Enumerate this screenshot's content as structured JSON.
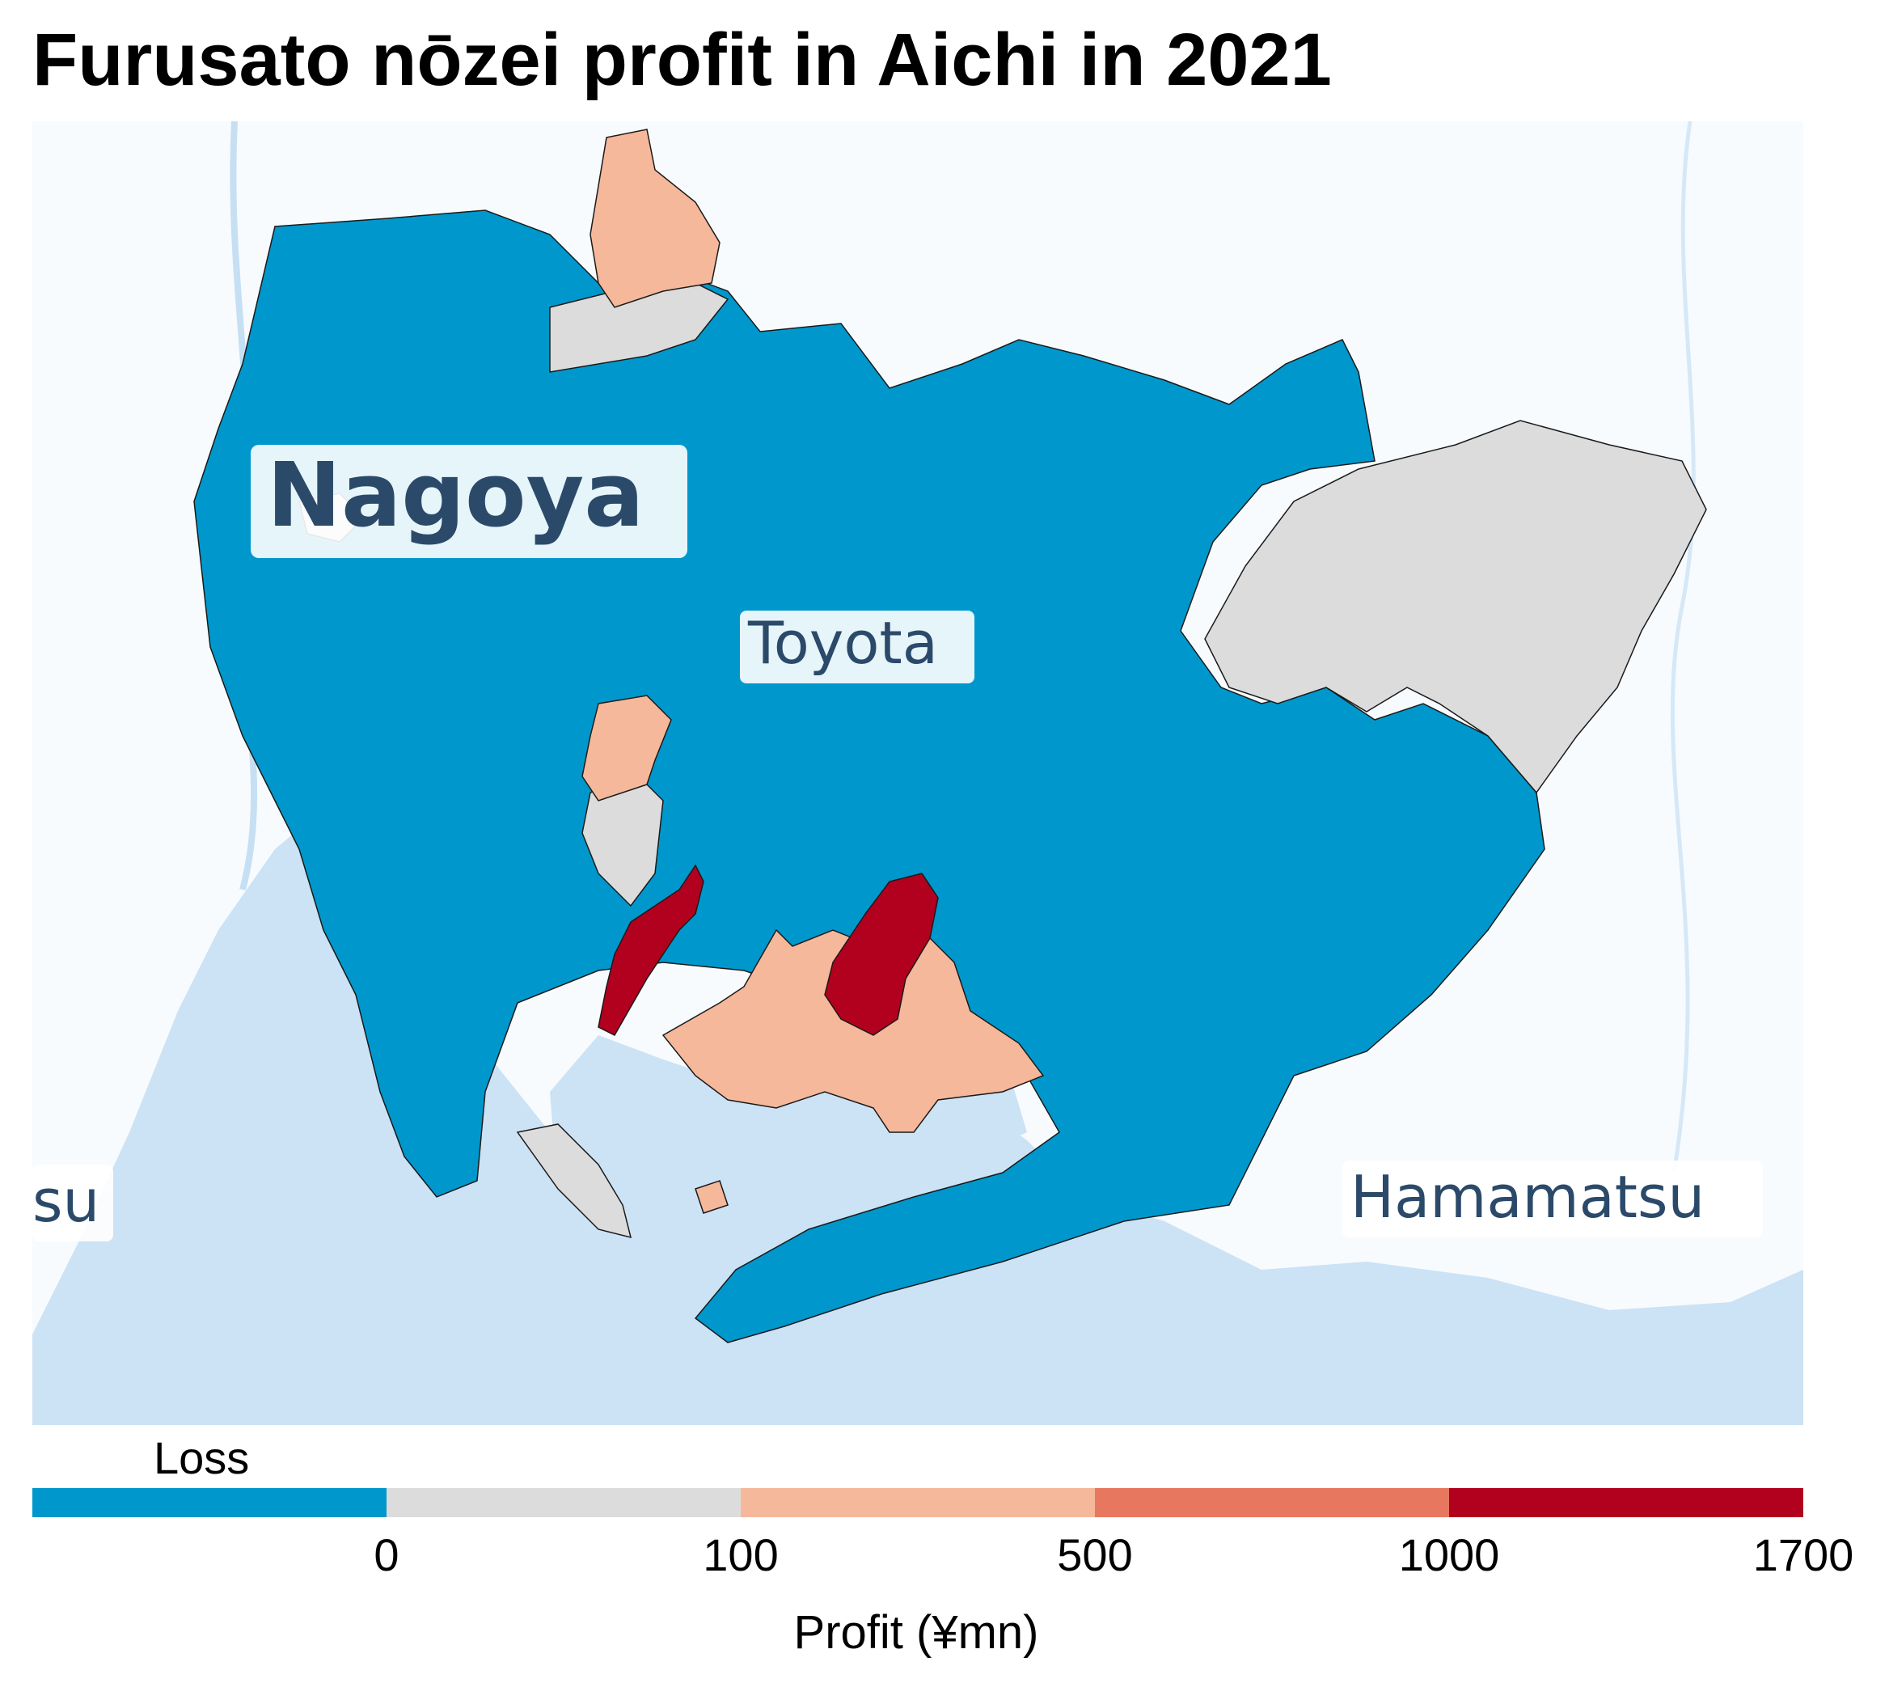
{
  "title": "Furusato nōzei profit in Aichi in 2021",
  "map_labels": {
    "nagoya": "Nagoya",
    "toyota": "Toyota",
    "hamamatsu": "Hamamatsu",
    "tsu_partial": "su"
  },
  "legend": {
    "title": "Loss",
    "axis_title": "Profit (¥mn)",
    "ticks": [
      "0",
      "100",
      "500",
      "1000",
      "1700"
    ],
    "bins": [
      {
        "label": "Loss",
        "color": "#0098cc"
      },
      {
        "label": "0–100",
        "color": "#dcdcdc"
      },
      {
        "label": "100–500",
        "color": "#f6b89a"
      },
      {
        "label": "500–1000",
        "color": "#e7785f"
      },
      {
        "label": "1000–1700",
        "color": "#b2001f"
      }
    ]
  },
  "colors": {
    "water": "#cce2f5",
    "land_background": "#f7fbfe",
    "loss": "#0098cc",
    "low": "#dcdcdc",
    "mid": "#f6b89a",
    "high": "#b2001f"
  }
}
